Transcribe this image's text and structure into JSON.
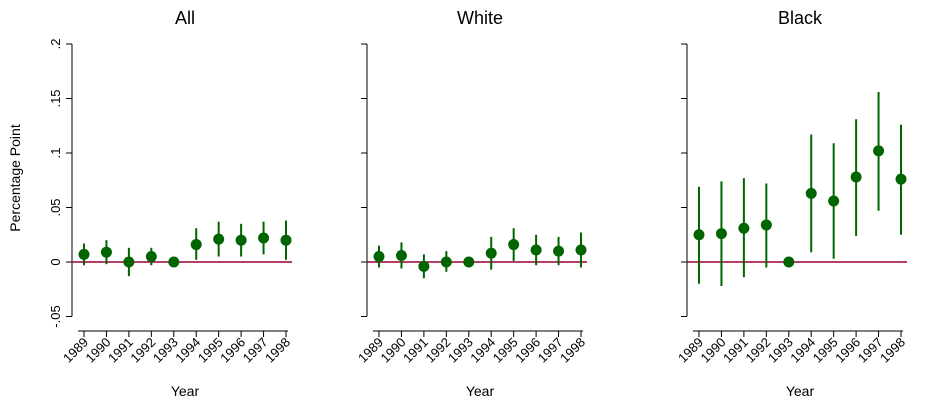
{
  "figure": {
    "ylabel": "Percentage Point",
    "xlabel": "Year"
  },
  "colors": {
    "marker": "#006400",
    "zero_line": "#990033",
    "axis": "#000000"
  },
  "chart_data": [
    {
      "type": "scatter",
      "title": "All",
      "xlabel": "Year",
      "ylabel": "Percentage Point",
      "categories": [
        "1989",
        "1990",
        "1991",
        "1992",
        "1993",
        "1994",
        "1995",
        "1996",
        "1997",
        "1998"
      ],
      "values": [
        0.007,
        0.009,
        0.0,
        0.005,
        0.0,
        0.016,
        0.021,
        0.02,
        0.022,
        0.02
      ],
      "ci_low": [
        -0.003,
        -0.002,
        -0.013,
        -0.003,
        0.0,
        0.002,
        0.005,
        0.005,
        0.007,
        0.002
      ],
      "ci_high": [
        0.017,
        0.02,
        0.013,
        0.013,
        0.0,
        0.031,
        0.037,
        0.035,
        0.037,
        0.038
      ],
      "yticks": [
        -0.05,
        0,
        0.05,
        0.1,
        0.15,
        0.2
      ],
      "ytick_labels": [
        "-.05",
        "0",
        ".05",
        ".1",
        ".15",
        ".2"
      ],
      "ylim": [
        -0.065,
        0.215
      ],
      "reference_line": 0
    },
    {
      "type": "scatter",
      "title": "White",
      "xlabel": "Year",
      "categories": [
        "1989",
        "1990",
        "1991",
        "1992",
        "1993",
        "1994",
        "1995",
        "1996",
        "1997",
        "1998"
      ],
      "values": [
        0.005,
        0.006,
        -0.004,
        0.0,
        0.0,
        0.008,
        0.016,
        0.011,
        0.01,
        0.011
      ],
      "ci_low": [
        -0.005,
        -0.006,
        -0.015,
        -0.009,
        0.0,
        -0.007,
        0.001,
        -0.003,
        -0.003,
        -0.005
      ],
      "ci_high": [
        0.015,
        0.018,
        0.007,
        0.01,
        0.0,
        0.023,
        0.031,
        0.025,
        0.023,
        0.027
      ],
      "yticks": [
        -0.05,
        0,
        0.05,
        0.1,
        0.15,
        0.2
      ],
      "ylim": [
        -0.065,
        0.215
      ],
      "reference_line": 0
    },
    {
      "type": "scatter",
      "title": "Black",
      "xlabel": "Year",
      "categories": [
        "1989",
        "1990",
        "1991",
        "1992",
        "1993",
        "1994",
        "1995",
        "1996",
        "1997",
        "1998"
      ],
      "values": [
        0.025,
        0.026,
        0.031,
        0.034,
        0.0,
        0.063,
        0.056,
        0.078,
        0.102,
        0.076
      ],
      "ci_low": [
        -0.02,
        -0.022,
        -0.014,
        -0.005,
        0.0,
        0.009,
        0.003,
        0.024,
        0.047,
        0.025
      ],
      "ci_high": [
        0.069,
        0.074,
        0.077,
        0.072,
        0.0,
        0.117,
        0.109,
        0.131,
        0.156,
        0.126
      ],
      "yticks": [
        -0.05,
        0,
        0.05,
        0.1,
        0.15,
        0.2
      ],
      "ylim": [
        -0.065,
        0.215
      ],
      "reference_line": 0
    }
  ]
}
